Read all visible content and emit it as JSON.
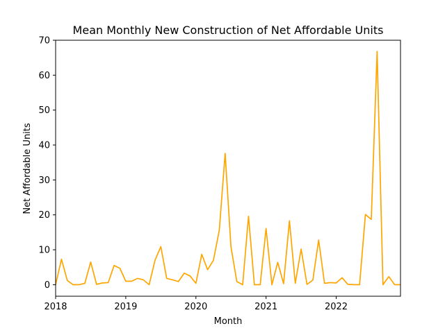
{
  "chart_data": {
    "type": "line",
    "title": "Mean Monthly New Construction of Net Affordable Units",
    "xlabel": "Month",
    "ylabel": "Net Affordable Units",
    "xlim": [
      "2018-01",
      "2022-12"
    ],
    "ylim": [
      -3.3,
      70
    ],
    "x_ticks": [
      "2018",
      "2019",
      "2020",
      "2021",
      "2022"
    ],
    "y_ticks": [
      0,
      10,
      20,
      30,
      40,
      50,
      60,
      70
    ],
    "grid": false,
    "legend": "none",
    "series": [
      {
        "color": "#ffa500",
        "x": [
          "2018-01",
          "2018-02",
          "2018-03",
          "2018-04",
          "2018-05",
          "2018-06",
          "2018-07",
          "2018-08",
          "2018-09",
          "2018-10",
          "2018-11",
          "2018-12",
          "2019-01",
          "2019-02",
          "2019-03",
          "2019-04",
          "2019-05",
          "2019-06",
          "2019-07",
          "2019-08",
          "2019-09",
          "2019-10",
          "2019-11",
          "2019-12",
          "2020-01",
          "2020-02",
          "2020-03",
          "2020-04",
          "2020-05",
          "2020-06",
          "2020-07",
          "2020-08",
          "2020-09",
          "2020-10",
          "2020-11",
          "2020-12",
          "2021-01",
          "2021-02",
          "2021-03",
          "2021-04",
          "2021-05",
          "2021-06",
          "2021-07",
          "2021-08",
          "2021-09",
          "2021-10",
          "2021-11",
          "2021-12",
          "2022-01",
          "2022-02",
          "2022-03",
          "2022-04",
          "2022-05",
          "2022-06",
          "2022-07",
          "2022-08",
          "2022-09",
          "2022-10",
          "2022-11",
          "2022-12"
        ],
        "values": [
          0,
          7.3,
          1.2,
          0,
          0,
          0.4,
          6.5,
          0.1,
          0.5,
          0.6,
          5.5,
          4.7,
          1.0,
          1.0,
          1.8,
          1.4,
          0,
          7.0,
          10.9,
          1.8,
          1.4,
          0.9,
          3.3,
          2.5,
          0.4,
          8.7,
          4.3,
          7.0,
          15.6,
          37.6,
          10.8,
          0.9,
          0,
          19.6,
          0,
          0,
          16.1,
          0,
          6.4,
          0.3,
          18.3,
          0.4,
          10.2,
          0.1,
          1.3,
          12.8,
          0.4,
          0.6,
          0.5,
          2.0,
          0.1,
          0,
          0,
          20.1,
          18.7,
          66.8,
          0,
          2.3,
          0,
          0
        ]
      }
    ]
  }
}
